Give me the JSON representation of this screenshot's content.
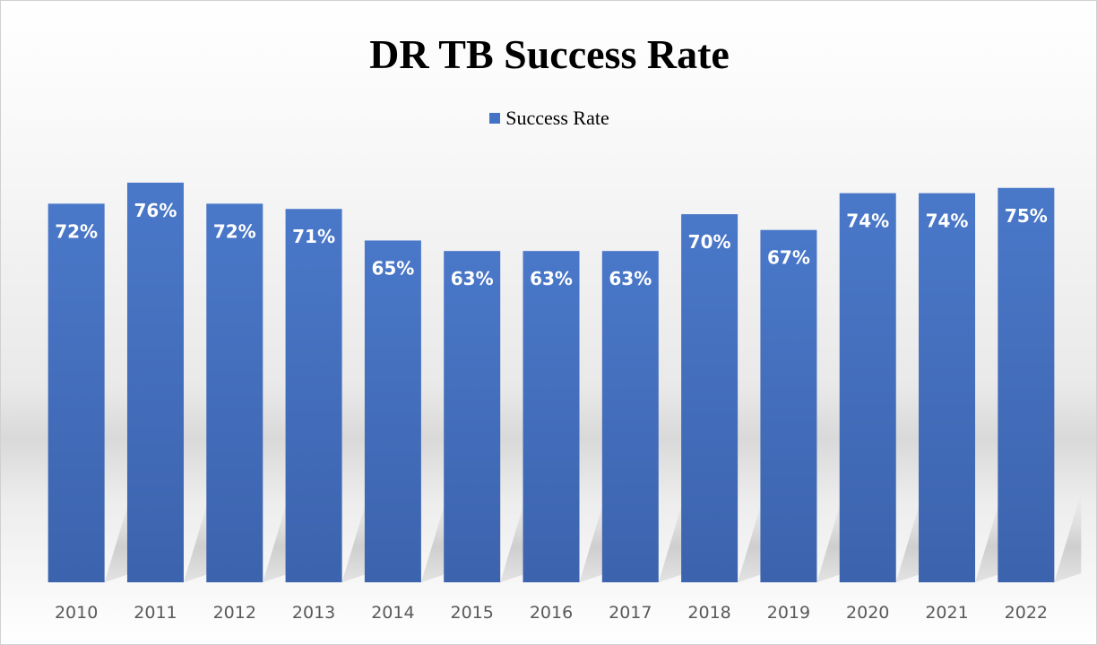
{
  "chart_data": {
    "type": "bar",
    "title": "DR TB Success Rate",
    "categories": [
      "2010",
      "2011",
      "2012",
      "2013",
      "2014",
      "2015",
      "2016",
      "2017",
      "2018",
      "2019",
      "2020",
      "2021",
      "2022"
    ],
    "series": [
      {
        "name": "Success Rate",
        "values": [
          72,
          76,
          72,
          71,
          65,
          63,
          63,
          63,
          70,
          67,
          74,
          74,
          75
        ],
        "labels": [
          "72%",
          "76%",
          "72%",
          "71%",
          "65%",
          "63%",
          "63%",
          "63%",
          "70%",
          "67%",
          "74%",
          "74%",
          "75%"
        ],
        "color": "#4472c4"
      }
    ],
    "ylim": [
      0,
      80
    ],
    "grid": false,
    "legend_position": "top"
  }
}
